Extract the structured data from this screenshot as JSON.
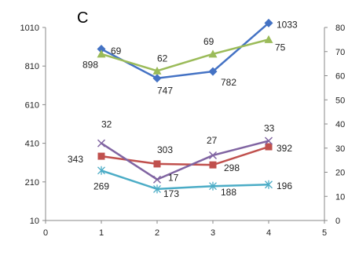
{
  "chart_data": {
    "type": "line",
    "title": "",
    "panel_label": "C",
    "xlabel": "",
    "ylabel": "",
    "x": [
      1,
      2,
      3,
      4
    ],
    "xlim": [
      0,
      5
    ],
    "x_ticks": [
      "0",
      "1",
      "2",
      "3",
      "4",
      "5"
    ],
    "ylim_left": [
      10,
      1010
    ],
    "y_ticks_left": [
      "10",
      "210",
      "410",
      "610",
      "810",
      "1010"
    ],
    "ylim_right": [
      0,
      80
    ],
    "y_ticks_right": [
      "0",
      "10",
      "20",
      "30",
      "40",
      "50",
      "60",
      "70",
      "80"
    ],
    "grid": false,
    "legend": "none",
    "series": [
      {
        "axis": "left",
        "color": "#4472C4",
        "marker": "diamond",
        "values": [
          898,
          747,
          782,
          1033
        ],
        "labels": [
          "898",
          "747",
          "782",
          "1033"
        ]
      },
      {
        "axis": "left",
        "color": "#C0504D",
        "marker": "square",
        "values": [
          343,
          303,
          298,
          392
        ],
        "labels": [
          "343",
          "303",
          "298",
          "392"
        ]
      },
      {
        "axis": "left",
        "color": "#4BACC6",
        "marker": "asterisk",
        "values": [
          269,
          173,
          188,
          196
        ],
        "labels": [
          "269",
          "173",
          "188",
          "196"
        ]
      },
      {
        "axis": "right",
        "color": "#9BBB59",
        "marker": "triangle",
        "values": [
          69,
          62,
          69,
          75
        ],
        "labels": [
          "69",
          "62",
          "69",
          "75"
        ]
      },
      {
        "axis": "right",
        "color": "#8064A2",
        "marker": "x",
        "values": [
          32,
          17,
          27,
          33
        ],
        "labels": [
          "32",
          "17",
          "27",
          "33"
        ]
      }
    ]
  }
}
